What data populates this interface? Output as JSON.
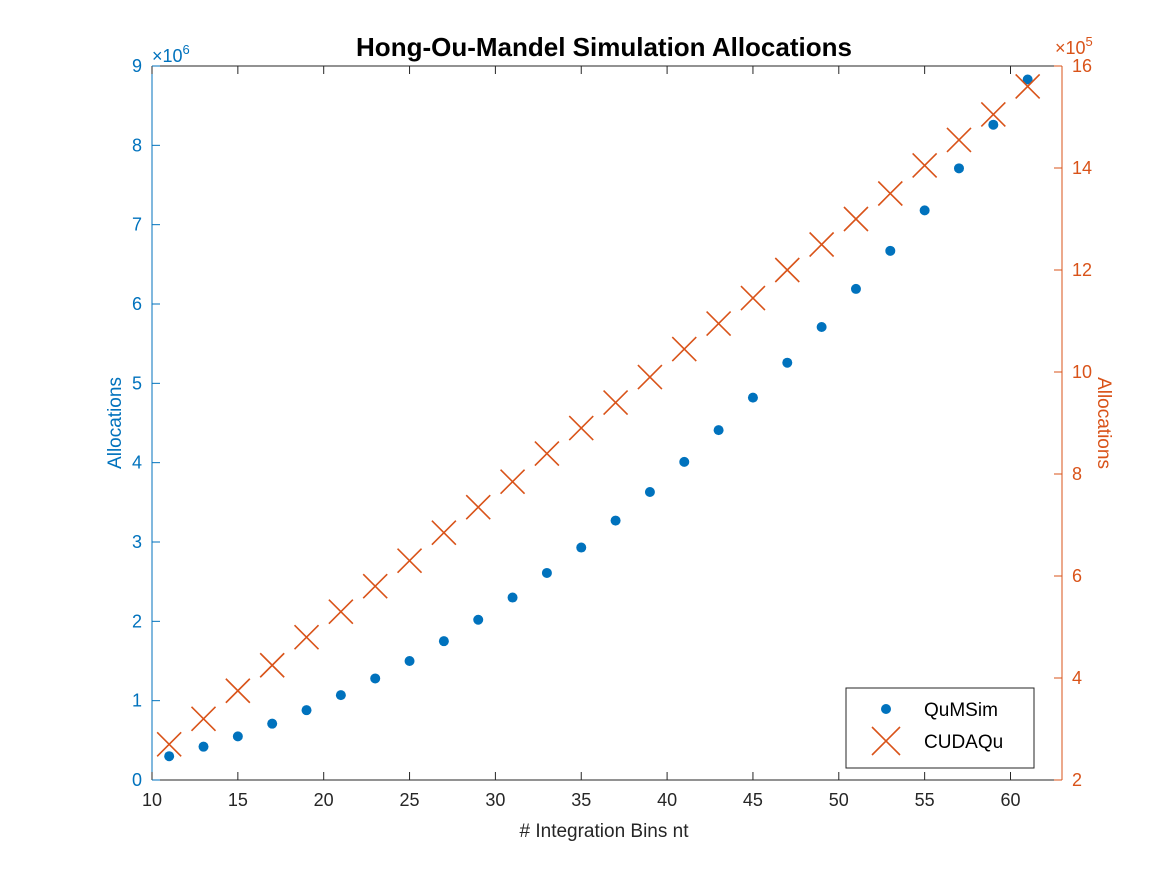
{
  "colors": {
    "left_axis": "#0072BD",
    "right_axis": "#D95319",
    "axes_black": "#262626"
  },
  "chart_data": {
    "type": "scatter",
    "title": "Hong-Ou-Mandel Simulation Allocations",
    "xlabel": "# Integration Bins nt",
    "ylabel_left": "Allocations",
    "ylabel_right": "Allocations",
    "left_exponent_base": "×10",
    "left_exponent_power": "6",
    "right_exponent_base": "×10",
    "right_exponent_power": "5",
    "xlim": [
      10,
      63
    ],
    "ylim_left": [
      0,
      9000000
    ],
    "ylim_right": [
      200000,
      1600000
    ],
    "x_ticks": [
      10,
      15,
      20,
      25,
      30,
      35,
      40,
      45,
      50,
      55,
      60
    ],
    "x_tick_labels": [
      "10",
      "15",
      "20",
      "25",
      "30",
      "35",
      "40",
      "45",
      "50",
      "55",
      "60"
    ],
    "y_left_ticks": [
      0,
      1000000,
      2000000,
      3000000,
      4000000,
      5000000,
      6000000,
      7000000,
      8000000,
      9000000
    ],
    "y_left_tick_labels": [
      "0",
      "1",
      "2",
      "3",
      "4",
      "5",
      "6",
      "7",
      "8",
      "9"
    ],
    "y_right_ticks": [
      200000,
      400000,
      600000,
      800000,
      1000000,
      1200000,
      1400000,
      1600000
    ],
    "y_right_tick_labels": [
      "2",
      "4",
      "6",
      "8",
      "10",
      "12",
      "14",
      "16"
    ],
    "grid": false,
    "legend_position": "bottom-right",
    "x": [
      11,
      13,
      15,
      17,
      19,
      21,
      23,
      25,
      27,
      29,
      31,
      33,
      35,
      37,
      39,
      41,
      43,
      45,
      47,
      49,
      51,
      53,
      55,
      57,
      59,
      61
    ],
    "series": [
      {
        "name": "QuMSim",
        "axis": "left",
        "marker": "dot",
        "values": [
          300000,
          420000,
          550000,
          710000,
          880000,
          1070000,
          1280000,
          1500000,
          1750000,
          2020000,
          2300000,
          2610000,
          2930000,
          3270000,
          3630000,
          4010000,
          4410000,
          4820000,
          5260000,
          5710000,
          6190000,
          6670000,
          7180000,
          7710000,
          8260000,
          8830000
        ]
      },
      {
        "name": "CUDAQu",
        "axis": "right",
        "marker": "x",
        "values": [
          270000,
          320000,
          375000,
          425000,
          480000,
          530000,
          580000,
          630000,
          685000,
          735000,
          785000,
          840000,
          890000,
          940000,
          990000,
          1045000,
          1095000,
          1145000,
          1200000,
          1250000,
          1300000,
          1350000,
          1405000,
          1455000,
          1505000,
          1560000
        ]
      }
    ]
  }
}
